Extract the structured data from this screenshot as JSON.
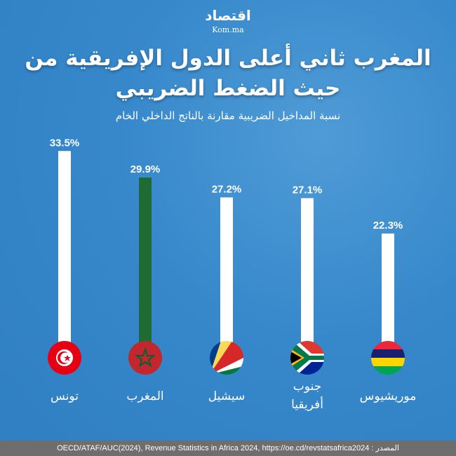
{
  "logo": {
    "arabic": "اقتصاد",
    "latin": "Kom.ma"
  },
  "title": "المغرب ثاني أعلى الدول الإفريقية من حيث الضغط الضريبي",
  "subtitle": "نسبة المداخيل الضريبية مقارنة بالناتج الداخلي الخام",
  "chart_data": {
    "type": "bar",
    "title": "المغرب ثاني أعلى الدول الإفريقية من حيث الضغط الضريبي",
    "subtitle": "نسبة المداخيل الضريبية مقارنة بالناتج الداخلي الخام",
    "categories": [
      "تونس",
      "المغرب",
      "سيشيل",
      "جنوب أفريقيا",
      "موريشيوس"
    ],
    "values": [
      33.5,
      29.9,
      27.2,
      27.1,
      22.3
    ],
    "value_labels": [
      "33.5%",
      "29.9%",
      "27.2%",
      "27.1%",
      "22.3%"
    ],
    "unit": "%",
    "bar_colors": [
      "#ffffff",
      "#1e6b34",
      "#ffffff",
      "#ffffff",
      "#ffffff"
    ],
    "highlight_color": "#1e6b34",
    "flags": [
      "tunisia-flag",
      "morocco-flag",
      "seychelles-flag",
      "south-africa-flag",
      "mauritius-flag"
    ],
    "grid": false
  },
  "footer": {
    "source": "OECD/ATAF/AUC(2024), Revenue Statistics in Africa 2024, https://oe.cd/revstatsafrica2024 : المصدر"
  }
}
